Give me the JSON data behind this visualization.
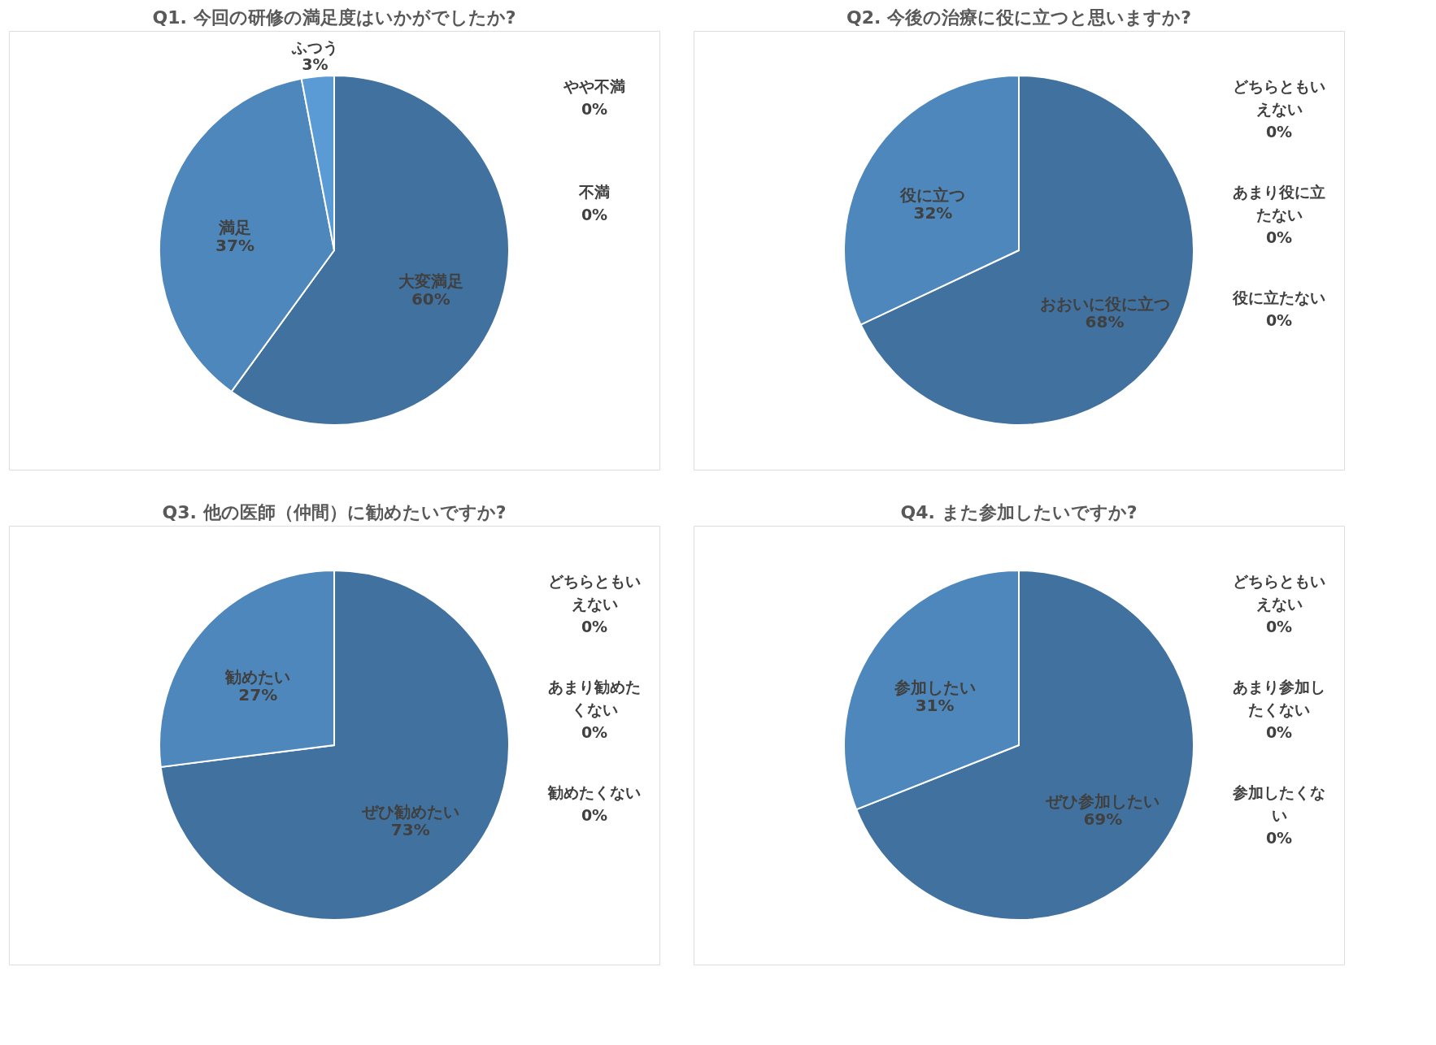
{
  "chart_data": [
    {
      "type": "pie",
      "title": "Q1. 今回の研修の満足度はいかがでしたか?",
      "categories": [
        "大変満足",
        "満足",
        "ふつう",
        "やや不満",
        "不満"
      ],
      "values": [
        60,
        37,
        3,
        0,
        0
      ],
      "value_labels": [
        "60%",
        "37%",
        "3%",
        "0%",
        "0%"
      ],
      "colors": [
        "#41729f",
        "#4e87bc",
        "#5b9bd5",
        "#a5a5a5",
        "#7f7f7f"
      ],
      "legend": false
    },
    {
      "type": "pie",
      "title": "Q2. 今後の治療に役に立つと思いますか?",
      "categories": [
        "おおいに役に立つ",
        "役に立つ",
        "どちらともいえない",
        "あまり役に立たない",
        "役に立たない"
      ],
      "values": [
        68,
        32,
        0,
        0,
        0
      ],
      "value_labels": [
        "68%",
        "32%",
        "0%",
        "0%",
        "0%"
      ],
      "colors": [
        "#41729f",
        "#4e87bc",
        "#5b9bd5",
        "#a5a5a5",
        "#7f7f7f"
      ],
      "legend": false
    },
    {
      "type": "pie",
      "title": "Q3. 他の医師（仲間）に勧めたいですか?",
      "categories": [
        "ぜひ勧めたい",
        "勧めたい",
        "どちらともいえない",
        "あまり勧めたくない",
        "勧めたくない"
      ],
      "values": [
        73,
        27,
        0,
        0,
        0
      ],
      "value_labels": [
        "73%",
        "27%",
        "0%",
        "0%",
        "0%"
      ],
      "colors": [
        "#41729f",
        "#4e87bc",
        "#5b9bd5",
        "#a5a5a5",
        "#7f7f7f"
      ],
      "legend": false
    },
    {
      "type": "pie",
      "title": "Q4. また参加したいですか?",
      "categories": [
        "ぜひ参加したい",
        "参加したい",
        "どちらともいえない",
        "あまり参加したくない",
        "参加したくない"
      ],
      "values": [
        69,
        31,
        0,
        0,
        0
      ],
      "value_labels": [
        "69%",
        "31%",
        "0%",
        "0%",
        "0%"
      ],
      "colors": [
        "#41729f",
        "#4e87bc",
        "#5b9bd5",
        "#a5a5a5",
        "#7f7f7f"
      ],
      "legend": false
    }
  ]
}
